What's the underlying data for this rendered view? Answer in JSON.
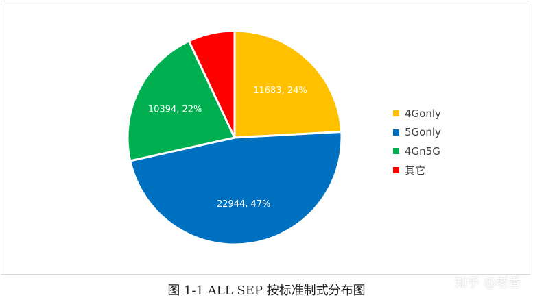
{
  "chart_data": {
    "type": "pie",
    "categories": [
      "4Gonly",
      "5Gonly",
      "4Gn5G",
      "其它"
    ],
    "values": [
      11683,
      22944,
      10394,
      3399
    ],
    "data_labels": [
      "11683, 24%",
      "22944, 47%",
      "10394, 22%",
      ""
    ],
    "colors": [
      "#FFC000",
      "#0070C0",
      "#00B050",
      "#FF0000"
    ],
    "start_angle_deg": 0,
    "direction": "clockwise",
    "legend_position": "right"
  },
  "legend": [
    {
      "label": "4Gonly",
      "color": "#FFC000"
    },
    {
      "label": "5Gonly",
      "color": "#0070C0"
    },
    {
      "label": "4Gn5G",
      "color": "#00B050"
    },
    {
      "label": "其它",
      "color": "#FF0000"
    }
  ],
  "caption": "图 1-1 ALL SEP 按标准制式分布图",
  "watermark": "知乎 @老香"
}
